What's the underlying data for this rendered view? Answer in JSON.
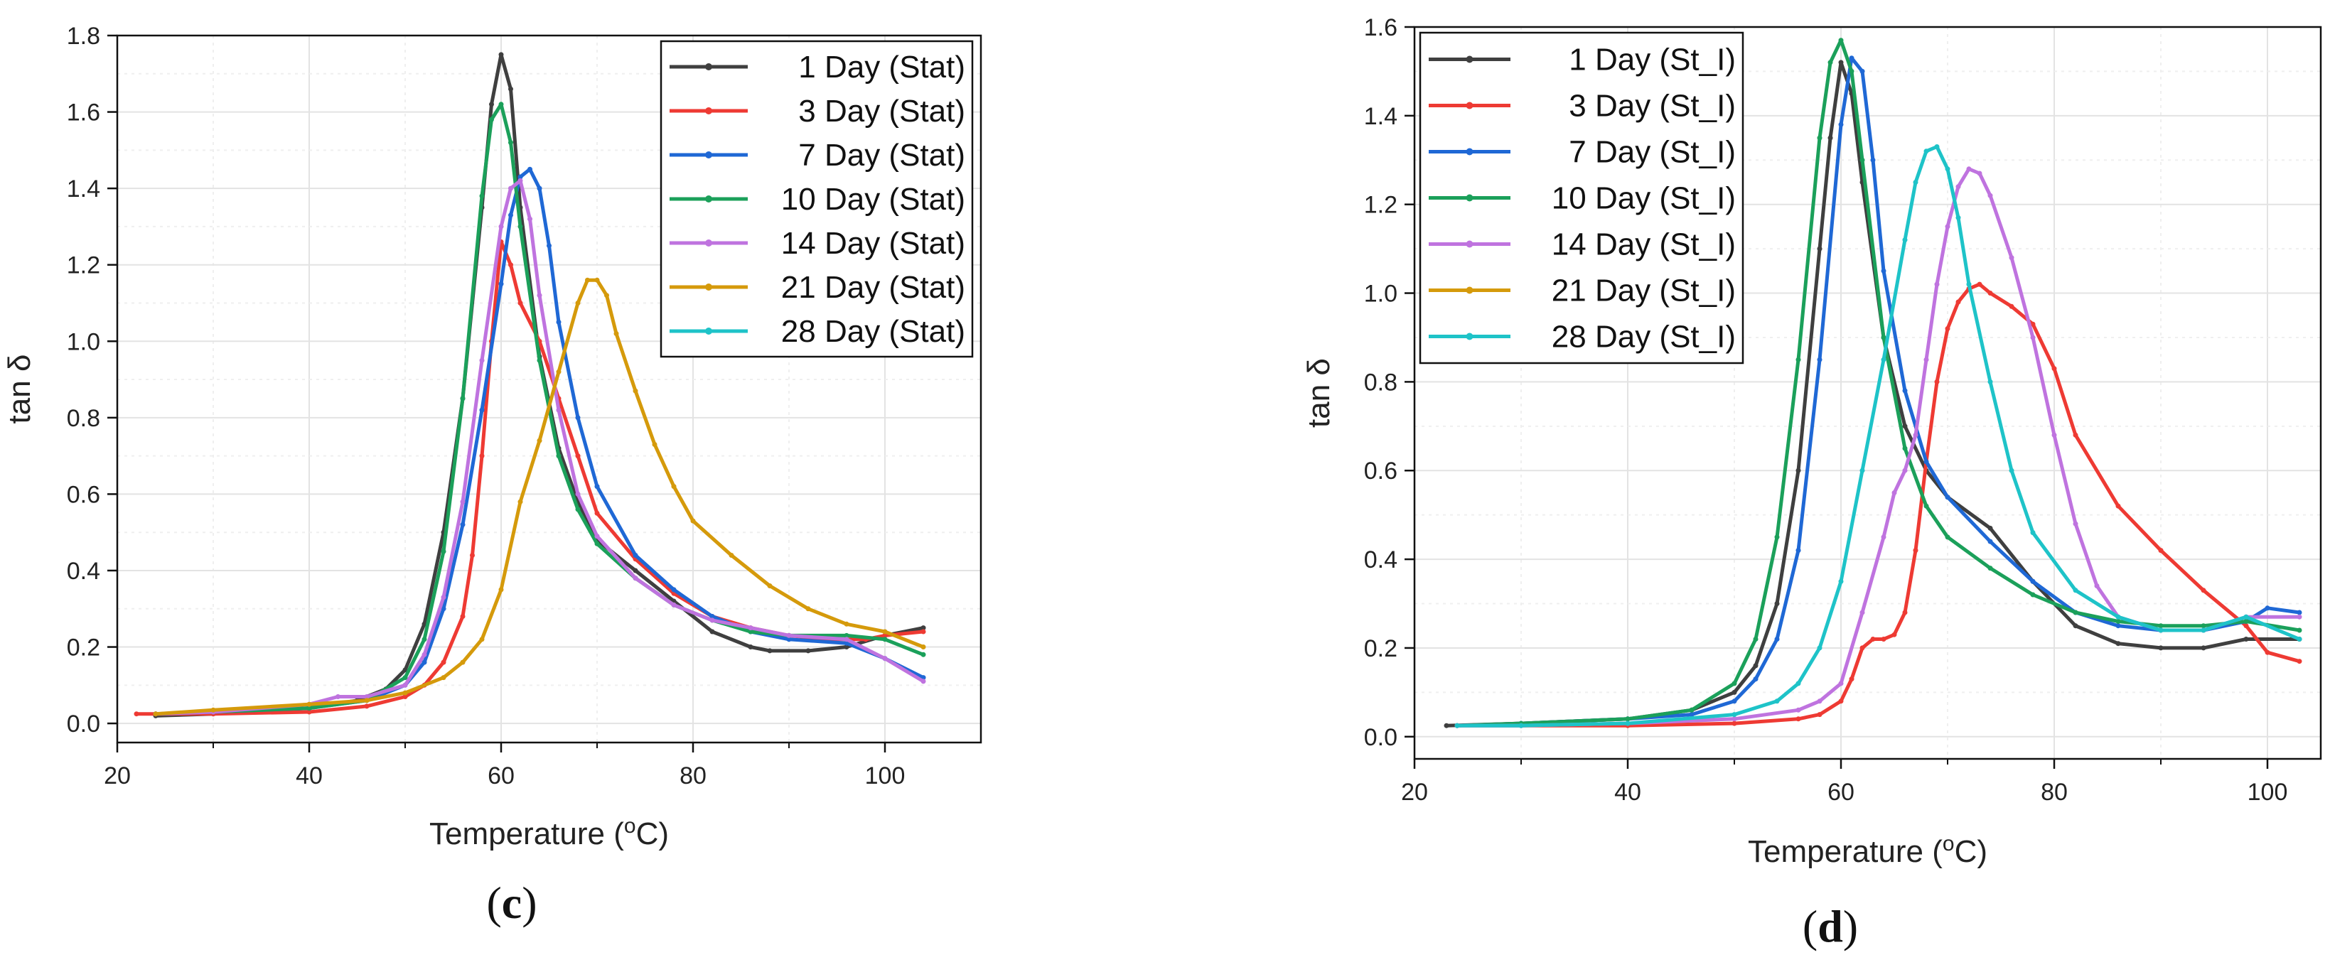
{
  "figure": {
    "panel_labels": [
      "c",
      "d"
    ]
  },
  "chart_data": [
    {
      "type": "line",
      "panel": "c",
      "xlabel": "Temperature (oC)",
      "xlabel_parts": {
        "pre": "Temperature (",
        "sup": "o",
        "post": "C)"
      },
      "ylabel": "tan δ",
      "xlim": [
        20,
        110
      ],
      "ylim": [
        -0.05,
        1.8
      ],
      "xticks": [
        20,
        40,
        60,
        80,
        100
      ],
      "yticks": [
        0.0,
        0.2,
        0.4,
        0.6,
        0.8,
        1.0,
        1.2,
        1.4,
        1.6,
        1.8
      ],
      "grid": true,
      "legend_position": "top-right",
      "series": [
        {
          "name": "1 Day (Stat)",
          "color": "#3f3f3f",
          "x": [
            24,
            30,
            40,
            45,
            48,
            50,
            52,
            54,
            56,
            58,
            59,
            60,
            61,
            62,
            64,
            66,
            68,
            70,
            74,
            78,
            82,
            86,
            88,
            92,
            96,
            100,
            104
          ],
          "y": [
            0.02,
            0.025,
            0.04,
            0.06,
            0.09,
            0.14,
            0.26,
            0.5,
            0.85,
            1.35,
            1.62,
            1.75,
            1.66,
            1.35,
            0.96,
            0.72,
            0.58,
            0.48,
            0.4,
            0.32,
            0.24,
            0.2,
            0.19,
            0.19,
            0.2,
            0.23,
            0.25
          ]
        },
        {
          "name": "3 Day (Stat)",
          "color": "#ee3a33",
          "x": [
            22,
            30,
            40,
            46,
            50,
            52,
            54,
            56,
            57,
            58,
            59,
            60,
            61,
            62,
            64,
            66,
            68,
            70,
            74,
            78,
            82,
            86,
            90,
            94,
            98,
            100,
            104
          ],
          "y": [
            0.025,
            0.025,
            0.03,
            0.045,
            0.07,
            0.1,
            0.16,
            0.28,
            0.44,
            0.7,
            1.0,
            1.26,
            1.2,
            1.1,
            1.0,
            0.85,
            0.7,
            0.55,
            0.43,
            0.34,
            0.28,
            0.25,
            0.23,
            0.22,
            0.22,
            0.23,
            0.24
          ]
        },
        {
          "name": "7 Day (Stat)",
          "color": "#1f68d5",
          "x": [
            24,
            30,
            40,
            46,
            50,
            52,
            54,
            56,
            58,
            60,
            61,
            62,
            63,
            64,
            65,
            66,
            68,
            70,
            74,
            78,
            82,
            86,
            90,
            96,
            100,
            104
          ],
          "y": [
            0.025,
            0.03,
            0.04,
            0.06,
            0.1,
            0.16,
            0.3,
            0.52,
            0.82,
            1.15,
            1.33,
            1.43,
            1.45,
            1.4,
            1.25,
            1.05,
            0.8,
            0.62,
            0.44,
            0.35,
            0.28,
            0.24,
            0.22,
            0.21,
            0.17,
            0.12
          ]
        },
        {
          "name": "10 Day (Stat)",
          "color": "#1ba05a",
          "x": [
            24,
            30,
            40,
            46,
            50,
            52,
            54,
            56,
            58,
            59,
            60,
            61,
            62,
            64,
            66,
            68,
            70,
            74,
            78,
            82,
            86,
            90,
            96,
            100,
            104
          ],
          "y": [
            0.025,
            0.03,
            0.04,
            0.06,
            0.12,
            0.22,
            0.45,
            0.85,
            1.38,
            1.58,
            1.62,
            1.52,
            1.3,
            0.95,
            0.7,
            0.56,
            0.47,
            0.38,
            0.31,
            0.27,
            0.24,
            0.23,
            0.23,
            0.22,
            0.18
          ]
        },
        {
          "name": "14 Day (Stat)",
          "color": "#bf73df",
          "x": [
            24,
            30,
            40,
            43,
            46,
            50,
            52,
            54,
            56,
            58,
            60,
            61,
            62,
            63,
            64,
            66,
            68,
            70,
            74,
            78,
            82,
            86,
            90,
            96,
            100,
            104
          ],
          "y": [
            0.025,
            0.03,
            0.05,
            0.07,
            0.07,
            0.1,
            0.18,
            0.33,
            0.58,
            0.95,
            1.3,
            1.4,
            1.42,
            1.32,
            1.12,
            0.82,
            0.6,
            0.49,
            0.38,
            0.31,
            0.27,
            0.25,
            0.23,
            0.22,
            0.17,
            0.11
          ]
        },
        {
          "name": "21 Day (Stat)",
          "color": "#d59a0b",
          "x": [
            24,
            30,
            40,
            46,
            50,
            54,
            56,
            58,
            60,
            62,
            64,
            66,
            68,
            69,
            70,
            71,
            72,
            74,
            76,
            78,
            80,
            84,
            88,
            92,
            96,
            100,
            104
          ],
          "y": [
            0.025,
            0.035,
            0.05,
            0.06,
            0.08,
            0.12,
            0.16,
            0.22,
            0.35,
            0.58,
            0.74,
            0.92,
            1.1,
            1.16,
            1.16,
            1.12,
            1.02,
            0.87,
            0.73,
            0.62,
            0.53,
            0.44,
            0.36,
            0.3,
            0.26,
            0.24,
            0.2
          ]
        },
        {
          "name": "28 Day (Stat)",
          "color": "#1ec3c8",
          "x": [],
          "y": []
        }
      ]
    },
    {
      "type": "line",
      "panel": "d",
      "xlabel": "Temperature (oC)",
      "xlabel_parts": {
        "pre": "Temperature (",
        "sup": "o",
        "post": "C)"
      },
      "ylabel": "tan δ",
      "xlim": [
        20,
        105
      ],
      "ylim": [
        -0.05,
        1.6
      ],
      "xticks": [
        20,
        40,
        60,
        80,
        100
      ],
      "yticks": [
        0.0,
        0.2,
        0.4,
        0.6,
        0.8,
        1.0,
        1.2,
        1.4,
        1.6
      ],
      "grid": true,
      "legend_position": "top-left",
      "series": [
        {
          "name": "1 Day (St_I)",
          "color": "#3f3f3f",
          "x": [
            23,
            30,
            40,
            46,
            50,
            52,
            54,
            56,
            58,
            59,
            60,
            61,
            62,
            64,
            66,
            68,
            70,
            74,
            78,
            82,
            86,
            90,
            94,
            98,
            103
          ],
          "y": [
            0.025,
            0.03,
            0.04,
            0.06,
            0.1,
            0.16,
            0.3,
            0.6,
            1.1,
            1.35,
            1.52,
            1.45,
            1.25,
            0.9,
            0.7,
            0.6,
            0.54,
            0.47,
            0.35,
            0.25,
            0.21,
            0.2,
            0.2,
            0.22,
            0.22
          ]
        },
        {
          "name": "3 Day (St_I)",
          "color": "#ee3a33",
          "x": [
            24,
            30,
            40,
            50,
            56,
            58,
            60,
            61,
            62,
            63,
            64,
            65,
            66,
            67,
            68,
            69,
            70,
            71,
            72,
            73,
            74,
            76,
            78,
            80,
            82,
            86,
            90,
            94,
            98,
            100,
            103
          ],
          "y": [
            0.025,
            0.025,
            0.025,
            0.03,
            0.04,
            0.05,
            0.08,
            0.13,
            0.2,
            0.22,
            0.22,
            0.23,
            0.28,
            0.42,
            0.62,
            0.8,
            0.92,
            0.98,
            1.01,
            1.02,
            1.0,
            0.97,
            0.93,
            0.83,
            0.68,
            0.52,
            0.42,
            0.33,
            0.25,
            0.19,
            0.17
          ]
        },
        {
          "name": "7 Day (St_I)",
          "color": "#1f68d5",
          "x": [
            24,
            30,
            40,
            46,
            50,
            52,
            54,
            56,
            58,
            60,
            61,
            62,
            63,
            64,
            66,
            68,
            70,
            74,
            78,
            82,
            86,
            90,
            94,
            98,
            100,
            103
          ],
          "y": [
            0.025,
            0.03,
            0.04,
            0.05,
            0.08,
            0.13,
            0.22,
            0.42,
            0.85,
            1.38,
            1.53,
            1.5,
            1.3,
            1.05,
            0.78,
            0.62,
            0.54,
            0.44,
            0.35,
            0.28,
            0.25,
            0.24,
            0.24,
            0.26,
            0.29,
            0.28
          ]
        },
        {
          "name": "10 Day (St_I)",
          "color": "#1ba05a",
          "x": [
            24,
            30,
            40,
            46,
            50,
            52,
            54,
            56,
            58,
            59,
            60,
            61,
            62,
            64,
            66,
            68,
            70,
            74,
            78,
            82,
            86,
            90,
            94,
            98,
            103
          ],
          "y": [
            0.025,
            0.03,
            0.04,
            0.06,
            0.12,
            0.22,
            0.45,
            0.85,
            1.35,
            1.52,
            1.57,
            1.5,
            1.3,
            0.9,
            0.65,
            0.52,
            0.45,
            0.38,
            0.32,
            0.28,
            0.26,
            0.25,
            0.25,
            0.26,
            0.24
          ]
        },
        {
          "name": "14 Day (St_I)",
          "color": "#bf73df",
          "x": [
            24,
            30,
            40,
            50,
            56,
            58,
            60,
            62,
            64,
            65,
            66,
            67,
            68,
            69,
            70,
            71,
            72,
            73,
            74,
            76,
            78,
            80,
            82,
            84,
            86,
            90,
            94,
            98,
            103
          ],
          "y": [
            0.025,
            0.025,
            0.03,
            0.04,
            0.06,
            0.08,
            0.12,
            0.28,
            0.45,
            0.55,
            0.6,
            0.68,
            0.85,
            1.02,
            1.15,
            1.24,
            1.28,
            1.27,
            1.22,
            1.08,
            0.9,
            0.68,
            0.48,
            0.34,
            0.27,
            0.24,
            0.24,
            0.27,
            0.27
          ]
        },
        {
          "name": "21 Day (St_I)",
          "color": "#d59a0b",
          "x": [],
          "y": []
        },
        {
          "name": "28 Day (St_I)",
          "color": "#1ec3c8",
          "x": [
            24,
            30,
            40,
            50,
            54,
            56,
            58,
            60,
            62,
            64,
            66,
            67,
            68,
            69,
            70,
            71,
            72,
            74,
            76,
            78,
            82,
            86,
            90,
            94,
            98,
            103
          ],
          "y": [
            0.025,
            0.025,
            0.03,
            0.05,
            0.08,
            0.12,
            0.2,
            0.35,
            0.6,
            0.85,
            1.12,
            1.25,
            1.32,
            1.33,
            1.28,
            1.17,
            1.02,
            0.8,
            0.6,
            0.46,
            0.33,
            0.27,
            0.24,
            0.24,
            0.27,
            0.22
          ]
        }
      ]
    }
  ]
}
